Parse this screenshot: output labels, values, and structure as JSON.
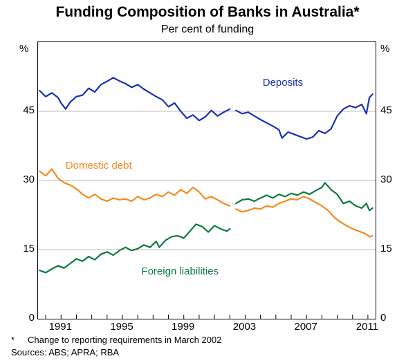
{
  "title": "Funding Composition of Banks in Australia*",
  "title_fontsize": 21,
  "subtitle": "Per cent of funding",
  "subtitle_fontsize": 16,
  "y_unit_label": "%",
  "x_range": [
    1989.5,
    2011.5
  ],
  "y_range": [
    0,
    60
  ],
  "y_ticks": [
    0,
    15,
    30,
    45
  ],
  "x_ticks": [
    1991,
    1995,
    1999,
    2003,
    2007,
    2011
  ],
  "x_minor_ticks": [
    1990,
    1991,
    1992,
    1993,
    1994,
    1995,
    1996,
    1997,
    1998,
    1999,
    2000,
    2001,
    2002,
    2003,
    2004,
    2005,
    2006,
    2007,
    2008,
    2009,
    2010,
    2011
  ],
  "grid_color": "#bdbdbd",
  "grid_width": 1,
  "background_color": "#ffffff",
  "axis_color": "#000000",
  "label_fontsize": 15,
  "break_at_x": 2002.2,
  "series": [
    {
      "name": "Deposits",
      "color": "#1630b3",
      "line_width": 2.2,
      "label_xy": [
        2005.5,
        51
      ],
      "data": [
        [
          1989.6,
          49.5
        ],
        [
          1990.0,
          48.2
        ],
        [
          1990.4,
          49.0
        ],
        [
          1990.8,
          48.0
        ],
        [
          1991.0,
          46.8
        ],
        [
          1991.3,
          45.5
        ],
        [
          1991.6,
          47.0
        ],
        [
          1992.0,
          48.2
        ],
        [
          1992.4,
          48.5
        ],
        [
          1992.8,
          50.0
        ],
        [
          1993.2,
          49.2
        ],
        [
          1993.6,
          50.8
        ],
        [
          1994.0,
          51.5
        ],
        [
          1994.4,
          52.3
        ],
        [
          1994.8,
          51.6
        ],
        [
          1995.2,
          51.0
        ],
        [
          1995.6,
          50.2
        ],
        [
          1996.0,
          50.8
        ],
        [
          1996.4,
          49.8
        ],
        [
          1996.8,
          49.0
        ],
        [
          1997.2,
          48.2
        ],
        [
          1997.6,
          47.5
        ],
        [
          1998.0,
          46.0
        ],
        [
          1998.4,
          46.8
        ],
        [
          1998.8,
          45.0
        ],
        [
          1999.2,
          43.5
        ],
        [
          1999.6,
          44.2
        ],
        [
          2000.0,
          43.0
        ],
        [
          2000.4,
          43.8
        ],
        [
          2000.8,
          45.2
        ],
        [
          2001.2,
          44.0
        ],
        [
          2001.6,
          44.8
        ],
        [
          2002.0,
          45.5
        ],
        [
          2002.4,
          45.2
        ],
        [
          2002.8,
          44.5
        ],
        [
          2003.2,
          44.8
        ],
        [
          2003.6,
          44.0
        ],
        [
          2004.0,
          43.2
        ],
        [
          2004.4,
          42.5
        ],
        [
          2004.8,
          41.8
        ],
        [
          2005.2,
          41.0
        ],
        [
          2005.4,
          39.2
        ],
        [
          2005.8,
          40.5
        ],
        [
          2006.2,
          40.0
        ],
        [
          2006.6,
          39.5
        ],
        [
          2007.0,
          39.0
        ],
        [
          2007.4,
          39.4
        ],
        [
          2007.8,
          40.8
        ],
        [
          2008.2,
          40.2
        ],
        [
          2008.6,
          41.2
        ],
        [
          2009.0,
          44.0
        ],
        [
          2009.4,
          45.5
        ],
        [
          2009.8,
          46.2
        ],
        [
          2010.2,
          45.8
        ],
        [
          2010.6,
          46.5
        ],
        [
          2010.9,
          44.5
        ],
        [
          2011.1,
          48.0
        ],
        [
          2011.3,
          48.7
        ]
      ]
    },
    {
      "name": "Domestic debt",
      "color": "#f58a1f",
      "line_width": 2.2,
      "label_xy": [
        1993.5,
        33
      ],
      "data": [
        [
          1989.6,
          32.0
        ],
        [
          1990.0,
          31.0
        ],
        [
          1990.4,
          32.5
        ],
        [
          1990.8,
          30.5
        ],
        [
          1991.2,
          29.5
        ],
        [
          1991.6,
          29.0
        ],
        [
          1992.0,
          28.2
        ],
        [
          1992.4,
          27.0
        ],
        [
          1992.8,
          26.2
        ],
        [
          1993.2,
          27.0
        ],
        [
          1993.6,
          26.0
        ],
        [
          1994.0,
          25.5
        ],
        [
          1994.4,
          26.2
        ],
        [
          1994.8,
          25.8
        ],
        [
          1995.2,
          26.0
        ],
        [
          1995.6,
          25.5
        ],
        [
          1996.0,
          26.5
        ],
        [
          1996.4,
          25.8
        ],
        [
          1996.8,
          26.2
        ],
        [
          1997.2,
          27.0
        ],
        [
          1997.6,
          26.5
        ],
        [
          1998.0,
          27.5
        ],
        [
          1998.4,
          26.8
        ],
        [
          1998.8,
          28.0
        ],
        [
          1999.2,
          27.2
        ],
        [
          1999.6,
          28.5
        ],
        [
          2000.0,
          27.5
        ],
        [
          2000.4,
          26.0
        ],
        [
          2000.8,
          26.5
        ],
        [
          2001.2,
          25.8
        ],
        [
          2001.6,
          25.0
        ],
        [
          2002.0,
          24.5
        ],
        [
          2002.4,
          23.8
        ],
        [
          2002.8,
          23.2
        ],
        [
          2003.2,
          23.5
        ],
        [
          2003.6,
          24.0
        ],
        [
          2004.0,
          23.8
        ],
        [
          2004.4,
          24.5
        ],
        [
          2004.8,
          24.2
        ],
        [
          2005.2,
          25.0
        ],
        [
          2005.6,
          25.5
        ],
        [
          2006.0,
          26.0
        ],
        [
          2006.4,
          25.8
        ],
        [
          2006.8,
          26.5
        ],
        [
          2007.2,
          26.0
        ],
        [
          2007.6,
          25.2
        ],
        [
          2008.0,
          24.5
        ],
        [
          2008.4,
          23.5
        ],
        [
          2008.8,
          22.0
        ],
        [
          2009.2,
          21.0
        ],
        [
          2009.6,
          20.2
        ],
        [
          2010.0,
          19.5
        ],
        [
          2010.4,
          19.0
        ],
        [
          2010.8,
          18.5
        ],
        [
          2011.1,
          17.8
        ],
        [
          2011.3,
          18.0
        ]
      ]
    },
    {
      "name": "Foreign liabilities",
      "color": "#0a7a3a",
      "line_width": 2.2,
      "label_xy": [
        1998.8,
        10
      ],
      "data": [
        [
          1989.6,
          10.5
        ],
        [
          1990.0,
          10.0
        ],
        [
          1990.4,
          10.8
        ],
        [
          1990.8,
          11.5
        ],
        [
          1991.2,
          11.0
        ],
        [
          1991.6,
          12.0
        ],
        [
          1992.0,
          13.0
        ],
        [
          1992.4,
          12.5
        ],
        [
          1992.8,
          13.5
        ],
        [
          1993.2,
          12.8
        ],
        [
          1993.6,
          14.0
        ],
        [
          1994.0,
          14.5
        ],
        [
          1994.4,
          13.8
        ],
        [
          1994.8,
          14.8
        ],
        [
          1995.2,
          15.5
        ],
        [
          1995.6,
          14.8
        ],
        [
          1996.0,
          15.2
        ],
        [
          1996.4,
          16.0
        ],
        [
          1996.8,
          15.5
        ],
        [
          1997.2,
          16.8
        ],
        [
          1997.4,
          15.5
        ],
        [
          1997.8,
          17.0
        ],
        [
          1998.2,
          17.8
        ],
        [
          1998.6,
          18.0
        ],
        [
          1999.0,
          17.5
        ],
        [
          1999.4,
          19.0
        ],
        [
          1999.8,
          20.5
        ],
        [
          2000.2,
          20.0
        ],
        [
          2000.6,
          18.8
        ],
        [
          2001.0,
          20.2
        ],
        [
          2001.4,
          19.5
        ],
        [
          2001.8,
          19.0
        ],
        [
          2002.0,
          19.5
        ],
        [
          2002.4,
          25.0
        ],
        [
          2002.8,
          25.8
        ],
        [
          2003.2,
          26.0
        ],
        [
          2003.6,
          25.5
        ],
        [
          2004.0,
          26.2
        ],
        [
          2004.4,
          26.8
        ],
        [
          2004.8,
          26.2
        ],
        [
          2005.2,
          27.0
        ],
        [
          2005.6,
          26.5
        ],
        [
          2006.0,
          27.2
        ],
        [
          2006.4,
          26.8
        ],
        [
          2006.8,
          27.5
        ],
        [
          2007.2,
          27.0
        ],
        [
          2007.6,
          27.8
        ],
        [
          2008.0,
          28.5
        ],
        [
          2008.2,
          29.5
        ],
        [
          2008.6,
          28.0
        ],
        [
          2009.0,
          27.0
        ],
        [
          2009.4,
          25.0
        ],
        [
          2009.8,
          25.5
        ],
        [
          2010.2,
          24.5
        ],
        [
          2010.6,
          24.0
        ],
        [
          2010.9,
          25.0
        ],
        [
          2011.1,
          23.5
        ],
        [
          2011.3,
          24.0
        ]
      ]
    }
  ],
  "footnote_marker": "*",
  "footnote_text": "Change to reporting requirements in March 2002",
  "sources_label": "Sources: ABS; APRA; RBA"
}
